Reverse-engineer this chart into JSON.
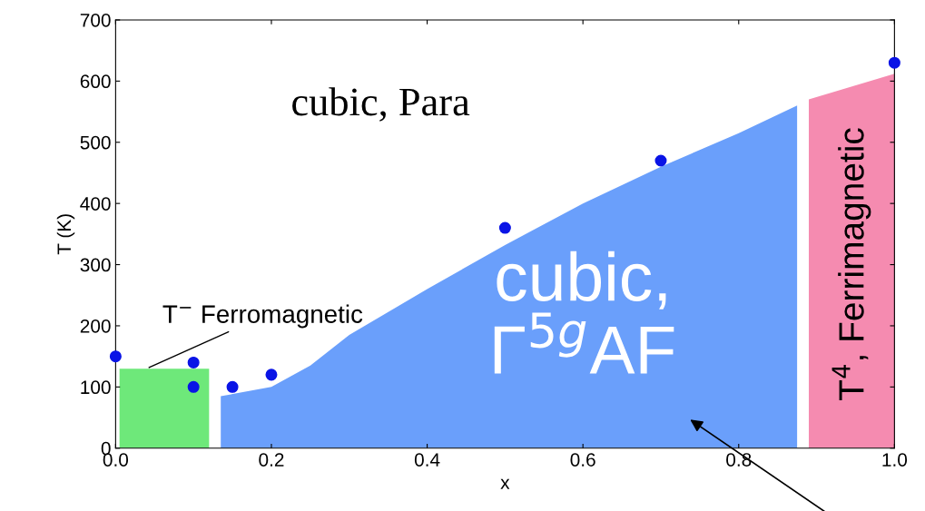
{
  "chart_data": {
    "type": "area",
    "xlabel": "x",
    "ylabel": "T (K)",
    "xlim": [
      0,
      1.0
    ],
    "ylim": [
      0,
      700
    ],
    "xticks": [
      {
        "value": 0,
        "label": "0.0"
      },
      {
        "value": 0.2,
        "label": "0.2"
      },
      {
        "value": 0.4,
        "label": "0.4"
      },
      {
        "value": 0.6,
        "label": "0.6"
      },
      {
        "value": 0.8,
        "label": "0.8"
      },
      {
        "value": 1.0,
        "label": "1.0"
      }
    ],
    "yticks": [
      0,
      100,
      200,
      300,
      400,
      500,
      600,
      700
    ],
    "grid": false,
    "legend": false,
    "series": [
      {
        "color": "#6ee87a",
        "x": [
          0.005,
          0.12
        ],
        "values": [
          130,
          130
        ]
      },
      {
        "color": "#6a9ffb",
        "x": [
          0.135,
          0.2,
          0.25,
          0.3,
          0.4,
          0.5,
          0.6,
          0.7,
          0.8,
          0.875
        ],
        "values": [
          85,
          100,
          135,
          185,
          260,
          332,
          400,
          460,
          515,
          560
        ]
      },
      {
        "color": "#f58bb0",
        "x": [
          0.89,
          1.0
        ],
        "values": [
          570,
          612
        ]
      },
      {
        "type": "scatter",
        "color": "#0a14e6",
        "marker": "circle",
        "x": [
          0.0,
          0.1,
          0.1,
          0.15,
          0.2,
          0.5,
          0.7,
          1.0
        ],
        "values": [
          150,
          140,
          100,
          100,
          120,
          360,
          470,
          630
        ]
      }
    ],
    "annotations": [
      "cubic, Para",
      {
        "text": "T$^{−}$ Ferromagnetic",
        "x": 0.04,
        "y": 130
      },
      "cubic, Γ$^{5g}$AF",
      "T$^{4}$, Ferrimagnetic"
    ]
  }
}
